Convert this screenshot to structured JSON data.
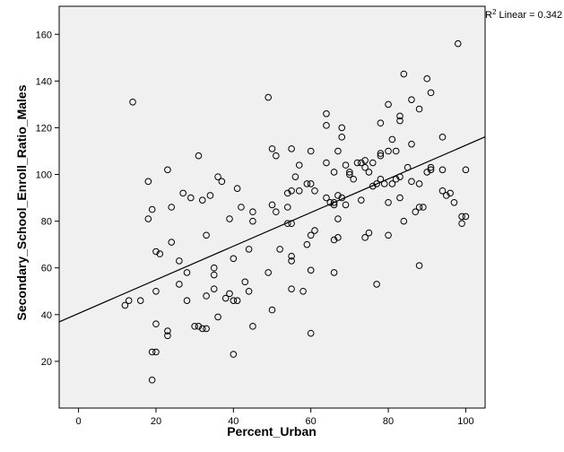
{
  "chart_data": {
    "type": "scatter",
    "title": "",
    "xlabel": "Percent_Urban",
    "ylabel": "Secondary_School_Enroll_Ratio_Males",
    "xlim": [
      -5,
      105
    ],
    "ylim": [
      0,
      172
    ],
    "x_ticks": [
      0,
      20,
      40,
      60,
      80,
      100
    ],
    "y_ticks": [
      20,
      40,
      60,
      80,
      100,
      120,
      140,
      160
    ],
    "grid": false,
    "plot_background": "#f0f0f0",
    "marker_color": "#000000",
    "fit_line": {
      "label_prefix": "R",
      "label_sup": "2",
      "label_suffix": " Linear = 0.342",
      "intercept": 40.5,
      "slope": 0.72
    },
    "points": [
      {
        "x": 12,
        "y": 44
      },
      {
        "x": 13,
        "y": 46
      },
      {
        "x": 14,
        "y": 131
      },
      {
        "x": 16,
        "y": 46
      },
      {
        "x": 18,
        "y": 97
      },
      {
        "x": 18,
        "y": 81
      },
      {
        "x": 19,
        "y": 85
      },
      {
        "x": 19,
        "y": 24
      },
      {
        "x": 19,
        "y": 12
      },
      {
        "x": 20,
        "y": 36
      },
      {
        "x": 20,
        "y": 24
      },
      {
        "x": 20,
        "y": 50
      },
      {
        "x": 20,
        "y": 67
      },
      {
        "x": 21,
        "y": 66
      },
      {
        "x": 23,
        "y": 102
      },
      {
        "x": 23,
        "y": 33
      },
      {
        "x": 23,
        "y": 31
      },
      {
        "x": 24,
        "y": 71
      },
      {
        "x": 24,
        "y": 86
      },
      {
        "x": 26,
        "y": 63
      },
      {
        "x": 26,
        "y": 53
      },
      {
        "x": 27,
        "y": 92
      },
      {
        "x": 28,
        "y": 58
      },
      {
        "x": 28,
        "y": 46
      },
      {
        "x": 29,
        "y": 90
      },
      {
        "x": 30,
        "y": 35
      },
      {
        "x": 31,
        "y": 108
      },
      {
        "x": 31,
        "y": 35
      },
      {
        "x": 32,
        "y": 34
      },
      {
        "x": 32,
        "y": 89
      },
      {
        "x": 33,
        "y": 34
      },
      {
        "x": 33,
        "y": 48
      },
      {
        "x": 33,
        "y": 74
      },
      {
        "x": 34,
        "y": 91
      },
      {
        "x": 35,
        "y": 60
      },
      {
        "x": 35,
        "y": 57
      },
      {
        "x": 35,
        "y": 51
      },
      {
        "x": 36,
        "y": 39
      },
      {
        "x": 36,
        "y": 99
      },
      {
        "x": 37,
        "y": 97
      },
      {
        "x": 38,
        "y": 47
      },
      {
        "x": 39,
        "y": 49
      },
      {
        "x": 39,
        "y": 81
      },
      {
        "x": 40,
        "y": 64
      },
      {
        "x": 40,
        "y": 46
      },
      {
        "x": 41,
        "y": 46
      },
      {
        "x": 41,
        "y": 94
      },
      {
        "x": 42,
        "y": 86
      },
      {
        "x": 43,
        "y": 54
      },
      {
        "x": 44,
        "y": 50
      },
      {
        "x": 44,
        "y": 68
      },
      {
        "x": 45,
        "y": 84
      },
      {
        "x": 45,
        "y": 80
      },
      {
        "x": 45,
        "y": 35
      },
      {
        "x": 40,
        "y": 23
      },
      {
        "x": 49,
        "y": 58
      },
      {
        "x": 49,
        "y": 133
      },
      {
        "x": 50,
        "y": 111
      },
      {
        "x": 50,
        "y": 42
      },
      {
        "x": 50,
        "y": 87
      },
      {
        "x": 51,
        "y": 84
      },
      {
        "x": 51,
        "y": 108
      },
      {
        "x": 52,
        "y": 68
      },
      {
        "x": 54,
        "y": 92
      },
      {
        "x": 54,
        "y": 86
      },
      {
        "x": 54,
        "y": 79
      },
      {
        "x": 55,
        "y": 93
      },
      {
        "x": 55,
        "y": 111
      },
      {
        "x": 55,
        "y": 65
      },
      {
        "x": 55,
        "y": 63
      },
      {
        "x": 55,
        "y": 51
      },
      {
        "x": 55,
        "y": 79
      },
      {
        "x": 56,
        "y": 99
      },
      {
        "x": 57,
        "y": 104
      },
      {
        "x": 57,
        "y": 93
      },
      {
        "x": 58,
        "y": 50
      },
      {
        "x": 59,
        "y": 96
      },
      {
        "x": 59,
        "y": 70
      },
      {
        "x": 60,
        "y": 74
      },
      {
        "x": 60,
        "y": 59
      },
      {
        "x": 60,
        "y": 32
      },
      {
        "x": 60,
        "y": 96
      },
      {
        "x": 60,
        "y": 110
      },
      {
        "x": 61,
        "y": 76
      },
      {
        "x": 61,
        "y": 93
      },
      {
        "x": 64,
        "y": 126
      },
      {
        "x": 64,
        "y": 121
      },
      {
        "x": 64,
        "y": 105
      },
      {
        "x": 64,
        "y": 90
      },
      {
        "x": 65,
        "y": 88
      },
      {
        "x": 66,
        "y": 72
      },
      {
        "x": 66,
        "y": 87
      },
      {
        "x": 66,
        "y": 101
      },
      {
        "x": 66,
        "y": 58
      },
      {
        "x": 66,
        "y": 88
      },
      {
        "x": 67,
        "y": 73
      },
      {
        "x": 67,
        "y": 81
      },
      {
        "x": 67,
        "y": 91
      },
      {
        "x": 67,
        "y": 110
      },
      {
        "x": 68,
        "y": 116
      },
      {
        "x": 68,
        "y": 120
      },
      {
        "x": 68,
        "y": 90
      },
      {
        "x": 69,
        "y": 104
      },
      {
        "x": 69,
        "y": 87
      },
      {
        "x": 70,
        "y": 100
      },
      {
        "x": 70,
        "y": 101
      },
      {
        "x": 71,
        "y": 98
      },
      {
        "x": 72,
        "y": 105
      },
      {
        "x": 73,
        "y": 105
      },
      {
        "x": 73,
        "y": 89
      },
      {
        "x": 74,
        "y": 106
      },
      {
        "x": 74,
        "y": 103
      },
      {
        "x": 74,
        "y": 73
      },
      {
        "x": 75,
        "y": 75
      },
      {
        "x": 75,
        "y": 101
      },
      {
        "x": 76,
        "y": 105
      },
      {
        "x": 76,
        "y": 95
      },
      {
        "x": 77,
        "y": 96
      },
      {
        "x": 77,
        "y": 53
      },
      {
        "x": 78,
        "y": 98
      },
      {
        "x": 78,
        "y": 108
      },
      {
        "x": 78,
        "y": 109
      },
      {
        "x": 78,
        "y": 122
      },
      {
        "x": 79,
        "y": 96
      },
      {
        "x": 80,
        "y": 110
      },
      {
        "x": 80,
        "y": 130
      },
      {
        "x": 80,
        "y": 88
      },
      {
        "x": 80,
        "y": 74
      },
      {
        "x": 81,
        "y": 96
      },
      {
        "x": 81,
        "y": 115
      },
      {
        "x": 82,
        "y": 110
      },
      {
        "x": 82,
        "y": 98
      },
      {
        "x": 83,
        "y": 99
      },
      {
        "x": 83,
        "y": 90
      },
      {
        "x": 83,
        "y": 123
      },
      {
        "x": 83,
        "y": 125
      },
      {
        "x": 84,
        "y": 143
      },
      {
        "x": 84,
        "y": 80
      },
      {
        "x": 85,
        "y": 103
      },
      {
        "x": 86,
        "y": 132
      },
      {
        "x": 86,
        "y": 113
      },
      {
        "x": 86,
        "y": 97
      },
      {
        "x": 87,
        "y": 84
      },
      {
        "x": 88,
        "y": 96
      },
      {
        "x": 88,
        "y": 86
      },
      {
        "x": 88,
        "y": 61
      },
      {
        "x": 88,
        "y": 128
      },
      {
        "x": 89,
        "y": 86
      },
      {
        "x": 90,
        "y": 141
      },
      {
        "x": 90,
        "y": 101
      },
      {
        "x": 91,
        "y": 135
      },
      {
        "x": 91,
        "y": 103
      },
      {
        "x": 91,
        "y": 102
      },
      {
        "x": 94,
        "y": 116
      },
      {
        "x": 94,
        "y": 102
      },
      {
        "x": 94,
        "y": 93
      },
      {
        "x": 95,
        "y": 91
      },
      {
        "x": 96,
        "y": 92
      },
      {
        "x": 97,
        "y": 88
      },
      {
        "x": 98,
        "y": 156
      },
      {
        "x": 99,
        "y": 82
      },
      {
        "x": 99,
        "y": 79
      },
      {
        "x": 100,
        "y": 82
      },
      {
        "x": 100,
        "y": 102
      }
    ]
  }
}
